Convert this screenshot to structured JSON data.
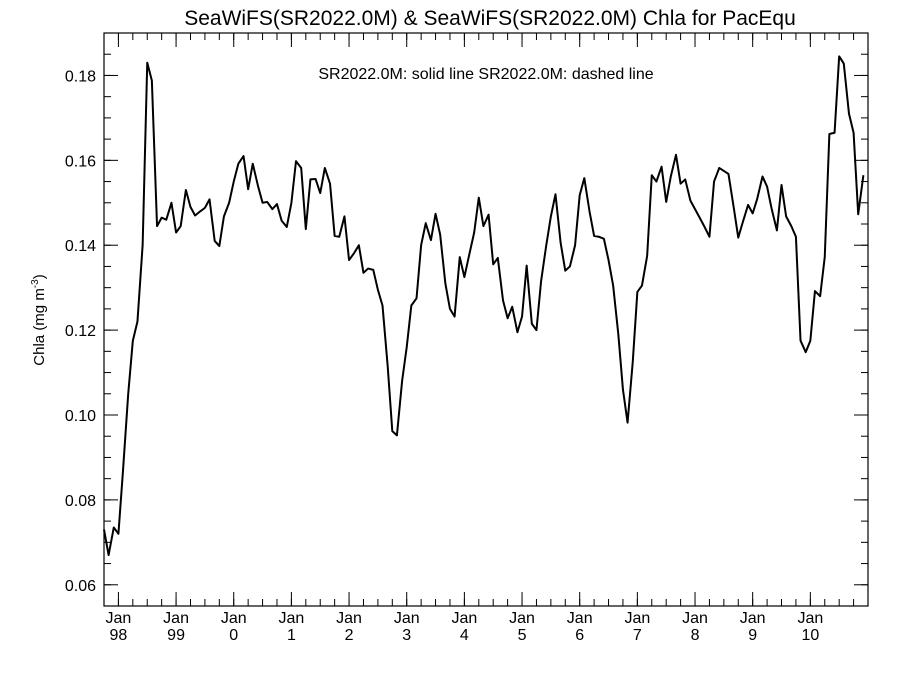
{
  "chart_data": {
    "type": "line",
    "title": "SeaWiFS(SR2022.0M) & SeaWiFS(SR2022.0M)  Chla for PacEqu",
    "legend_text": "SR2022.0M: solid line   SR2022.0M: dashed line",
    "ylabel_main": "Chla (mg m",
    "ylabel_sup": "-3",
    "ylabel_close": ")",
    "ylim": [
      0.055,
      0.19
    ],
    "xlim": [
      1997.75,
      2011.0
    ],
    "y_ticks": [
      "0.06",
      "0.08",
      "0.10",
      "0.12",
      "0.14",
      "0.16",
      "0.18"
    ],
    "x_ticks": [
      {
        "label1": "Jan",
        "label2": "98",
        "x": 1998.0
      },
      {
        "label1": "Jan",
        "label2": "99",
        "x": 1999.0
      },
      {
        "label1": "Jan",
        "label2": "0",
        "x": 2000.0
      },
      {
        "label1": "Jan",
        "label2": "1",
        "x": 2001.0
      },
      {
        "label1": "Jan",
        "label2": "2",
        "x": 2002.0
      },
      {
        "label1": "Jan",
        "label2": "3",
        "x": 2003.0
      },
      {
        "label1": "Jan",
        "label2": "4",
        "x": 2004.0
      },
      {
        "label1": "Jan",
        "label2": "5",
        "x": 2005.0
      },
      {
        "label1": "Jan",
        "label2": "6",
        "x": 2006.0
      },
      {
        "label1": "Jan",
        "label2": "7",
        "x": 2007.0
      },
      {
        "label1": "Jan",
        "label2": "8",
        "x": 2008.0
      },
      {
        "label1": "Jan",
        "label2": "9",
        "x": 2009.0
      },
      {
        "label1": "Jan",
        "label2": "10",
        "x": 2010.0
      }
    ],
    "series": [
      {
        "style": "solid",
        "values": [
          [
            1997.75,
            0.073
          ],
          [
            1997.83,
            0.067
          ],
          [
            1997.92,
            0.0735
          ],
          [
            1998.0,
            0.072
          ],
          [
            1998.08,
            0.087
          ],
          [
            1998.17,
            0.105
          ],
          [
            1998.25,
            0.1175
          ],
          [
            1998.33,
            0.122
          ],
          [
            1998.42,
            0.14
          ],
          [
            1998.5,
            0.183
          ],
          [
            1998.58,
            0.1788
          ],
          [
            1998.67,
            0.1445
          ],
          [
            1998.75,
            0.1465
          ],
          [
            1998.83,
            0.146
          ],
          [
            1998.92,
            0.15
          ],
          [
            1999.0,
            0.143
          ],
          [
            1999.08,
            0.1445
          ],
          [
            1999.17,
            0.153
          ],
          [
            1999.25,
            0.149
          ],
          [
            1999.33,
            0.147
          ],
          [
            1999.42,
            0.148
          ],
          [
            1999.5,
            0.1488
          ],
          [
            1999.58,
            0.1508
          ],
          [
            1999.67,
            0.141
          ],
          [
            1999.75,
            0.1398
          ],
          [
            1999.83,
            0.1468
          ],
          [
            1999.92,
            0.15
          ],
          [
            2000.0,
            0.155
          ],
          [
            2000.08,
            0.1592
          ],
          [
            2000.17,
            0.161
          ],
          [
            2000.25,
            0.1532
          ],
          [
            2000.33,
            0.1592
          ],
          [
            2000.42,
            0.154
          ],
          [
            2000.5,
            0.15
          ],
          [
            2000.58,
            0.1502
          ],
          [
            2000.67,
            0.1485
          ],
          [
            2000.75,
            0.1497
          ],
          [
            2000.83,
            0.1458
          ],
          [
            2000.92,
            0.1443
          ],
          [
            2001.0,
            0.15
          ],
          [
            2001.08,
            0.1598
          ],
          [
            2001.17,
            0.1582
          ],
          [
            2001.25,
            0.1438
          ],
          [
            2001.33,
            0.1555
          ],
          [
            2001.42,
            0.1556
          ],
          [
            2001.5,
            0.1523
          ],
          [
            2001.58,
            0.1582
          ],
          [
            2001.67,
            0.1545
          ],
          [
            2001.75,
            0.1422
          ],
          [
            2001.83,
            0.142
          ],
          [
            2001.92,
            0.1468
          ],
          [
            2002.0,
            0.1365
          ],
          [
            2002.08,
            0.138
          ],
          [
            2002.17,
            0.14
          ],
          [
            2002.25,
            0.1335
          ],
          [
            2002.33,
            0.1345
          ],
          [
            2002.42,
            0.1342
          ],
          [
            2002.5,
            0.1295
          ],
          [
            2002.58,
            0.1258
          ],
          [
            2002.67,
            0.1115
          ],
          [
            2002.75,
            0.0962
          ],
          [
            2002.83,
            0.0952
          ],
          [
            2002.92,
            0.108
          ],
          [
            2003.0,
            0.116
          ],
          [
            2003.08,
            0.1258
          ],
          [
            2003.17,
            0.1275
          ],
          [
            2003.25,
            0.14
          ],
          [
            2003.33,
            0.1452
          ],
          [
            2003.42,
            0.1412
          ],
          [
            2003.5,
            0.1474
          ],
          [
            2003.58,
            0.1425
          ],
          [
            2003.67,
            0.131
          ],
          [
            2003.75,
            0.125
          ],
          [
            2003.83,
            0.1232
          ],
          [
            2003.92,
            0.1372
          ],
          [
            2004.0,
            0.1325
          ],
          [
            2004.08,
            0.1375
          ],
          [
            2004.17,
            0.143
          ],
          [
            2004.25,
            0.1512
          ],
          [
            2004.33,
            0.1445
          ],
          [
            2004.42,
            0.1472
          ],
          [
            2004.5,
            0.1355
          ],
          [
            2004.58,
            0.137
          ],
          [
            2004.67,
            0.127
          ],
          [
            2004.75,
            0.1228
          ],
          [
            2004.83,
            0.1255
          ],
          [
            2004.92,
            0.1195
          ],
          [
            2005.0,
            0.1232
          ],
          [
            2005.08,
            0.1352
          ],
          [
            2005.17,
            0.1215
          ],
          [
            2005.25,
            0.12
          ],
          [
            2005.33,
            0.1315
          ],
          [
            2005.42,
            0.14
          ],
          [
            2005.5,
            0.1468
          ],
          [
            2005.58,
            0.152
          ],
          [
            2005.67,
            0.1405
          ],
          [
            2005.75,
            0.134
          ],
          [
            2005.83,
            0.135
          ],
          [
            2005.92,
            0.14
          ],
          [
            2006.0,
            0.1518
          ],
          [
            2006.08,
            0.1558
          ],
          [
            2006.17,
            0.148
          ],
          [
            2006.25,
            0.1422
          ],
          [
            2006.33,
            0.142
          ],
          [
            2006.42,
            0.1415
          ],
          [
            2006.5,
            0.1365
          ],
          [
            2006.58,
            0.1305
          ],
          [
            2006.67,
            0.119
          ],
          [
            2006.75,
            0.106
          ],
          [
            2006.83,
            0.0982
          ],
          [
            2006.92,
            0.1125
          ],
          [
            2007.0,
            0.129
          ],
          [
            2007.08,
            0.1305
          ],
          [
            2007.17,
            0.1375
          ],
          [
            2007.25,
            0.1565
          ],
          [
            2007.33,
            0.155
          ],
          [
            2007.42,
            0.1585
          ],
          [
            2007.5,
            0.1502
          ],
          [
            2007.58,
            0.1562
          ],
          [
            2007.67,
            0.1613
          ],
          [
            2007.75,
            0.1545
          ],
          [
            2007.83,
            0.1555
          ],
          [
            2007.92,
            0.1505
          ],
          [
            2008.0,
            0.1485
          ],
          [
            2008.08,
            0.1465
          ],
          [
            2008.17,
            0.1442
          ],
          [
            2008.25,
            0.142
          ],
          [
            2008.33,
            0.155
          ],
          [
            2008.42,
            0.1582
          ],
          [
            2008.5,
            0.1575
          ],
          [
            2008.58,
            0.1568
          ],
          [
            2008.67,
            0.149
          ],
          [
            2008.75,
            0.1418
          ],
          [
            2008.83,
            0.1455
          ],
          [
            2008.92,
            0.1495
          ],
          [
            2009.0,
            0.1475
          ],
          [
            2009.08,
            0.151
          ],
          [
            2009.17,
            0.1562
          ],
          [
            2009.25,
            0.1538
          ],
          [
            2009.33,
            0.1485
          ],
          [
            2009.42,
            0.1435
          ],
          [
            2009.5,
            0.1542
          ],
          [
            2009.58,
            0.1468
          ],
          [
            2009.67,
            0.1445
          ],
          [
            2009.75,
            0.142
          ],
          [
            2009.83,
            0.1175
          ],
          [
            2009.92,
            0.1148
          ],
          [
            2010.0,
            0.1175
          ],
          [
            2010.08,
            0.1292
          ],
          [
            2010.17,
            0.128
          ],
          [
            2010.25,
            0.1372
          ],
          [
            2010.33,
            0.1662
          ],
          [
            2010.42,
            0.1665
          ],
          [
            2010.5,
            0.1845
          ],
          [
            2010.58,
            0.1828
          ],
          [
            2010.67,
            0.171
          ],
          [
            2010.75,
            0.1665
          ],
          [
            2010.83,
            0.1473
          ],
          [
            2010.92,
            0.1565
          ]
        ]
      }
    ]
  }
}
